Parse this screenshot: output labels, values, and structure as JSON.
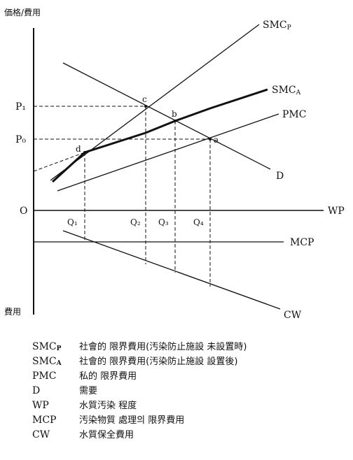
{
  "axes": {
    "y_top_label": "価格/費用",
    "y_bottom_label": "費用",
    "x_label": "WP",
    "origin_label": "O"
  },
  "price_labels": [
    "P₁",
    "P₀"
  ],
  "quantity_labels": [
    "Q₁",
    "Q₂",
    "Q₃",
    "Q₄"
  ],
  "point_labels": [
    "a",
    "b",
    "c",
    "d"
  ],
  "curves": {
    "smcp": {
      "main": "SMC",
      "sub": "P"
    },
    "smca": {
      "main": "SMC",
      "sub": "A"
    },
    "pmc": "PMC",
    "d": "D",
    "mcp": "MCP",
    "cw": "CW"
  },
  "legend": [
    {
      "term": "SMC",
      "sub": "P",
      "definition": "社會的 限界費用(汚染防止施設 未設置時)"
    },
    {
      "term": "SMC",
      "sub": "A",
      "definition": "社會的 限界費用(汚染防止施設 設置後)"
    },
    {
      "term": "PMC",
      "sub": "",
      "definition": "私的 限界費用"
    },
    {
      "term": "D",
      "sub": "",
      "definition": "需要"
    },
    {
      "term": "WP",
      "sub": "",
      "definition": "水質汚染 程度"
    },
    {
      "term": "MCP",
      "sub": "",
      "definition": "汚染物質 處理의 限界費用"
    },
    {
      "term": "CW",
      "sub": "",
      "definition": "水質保全費用"
    }
  ]
}
